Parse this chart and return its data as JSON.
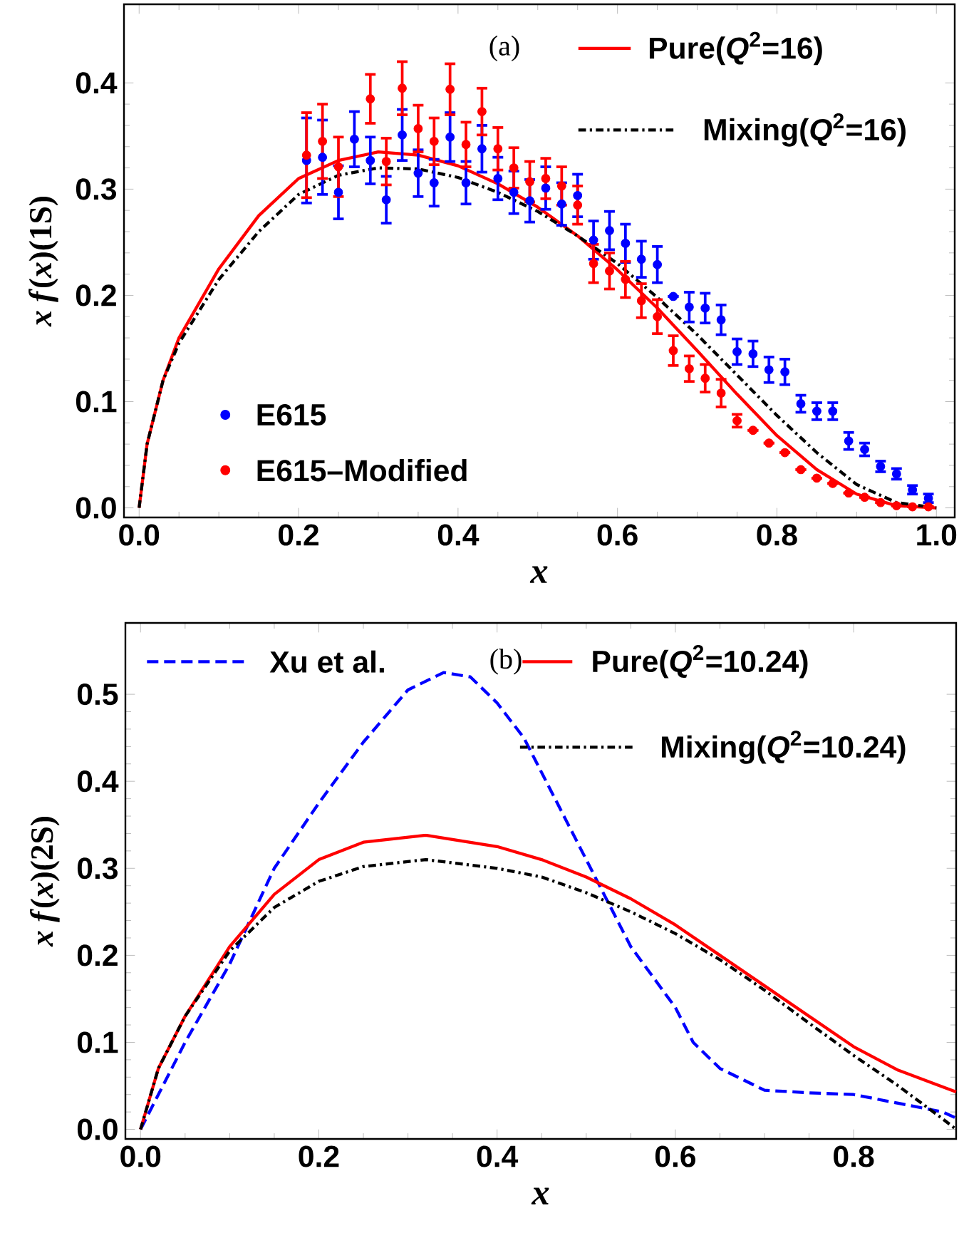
{
  "chart_data": [
    {
      "type": "line",
      "xlabel": "x",
      "ylabel": "*x* *f*(*x*)(1S)",
      "annotations": [
        "(a)"
      ],
      "xlim": [
        -0.019,
        1.023
      ],
      "ylim": [
        -0.009,
        0.474
      ],
      "xticks": [
        {
          "value": 0,
          "label": "0.0"
        },
        {
          "value": 0.2,
          "label": "0.2"
        },
        {
          "value": 0.4,
          "label": "0.4"
        },
        {
          "value": 0.6,
          "label": "0.6"
        },
        {
          "value": 0.8,
          "label": "0.8"
        },
        {
          "value": 1,
          "label": "1.0"
        }
      ],
      "yticks": [
        {
          "value": 0,
          "label": "0.0"
        },
        {
          "value": 0.1,
          "label": "0.1"
        },
        {
          "value": 0.2,
          "label": "0.2"
        },
        {
          "value": 0.3,
          "label": "0.3"
        },
        {
          "value": 0.4,
          "label": "0.4"
        }
      ],
      "legend": "top right",
      "series": [
        {
          "name": "Pure(*Q*$^{2}$=16)",
          "type": "line",
          "color": "#ff0000",
          "line_style": "solid",
          "x": [
            0,
            0.01,
            0.03,
            0.05,
            0.1,
            0.15,
            0.2,
            0.25,
            0.3,
            0.35,
            0.4,
            0.45,
            0.5,
            0.55,
            0.6,
            0.65,
            0.7,
            0.75,
            0.8,
            0.85,
            0.9,
            0.95,
            1.0
          ],
          "values": [
            0,
            0.06,
            0.12,
            0.16,
            0.225,
            0.275,
            0.31,
            0.327,
            0.335,
            0.332,
            0.322,
            0.305,
            0.283,
            0.256,
            0.224,
            0.188,
            0.148,
            0.107,
            0.068,
            0.036,
            0.013,
            0.002,
            0
          ]
        },
        {
          "name": "Mixing(*Q*$^{2}$=16)",
          "type": "line",
          "color": "#000000",
          "line_style": "dashdot",
          "x": [
            0,
            0.01,
            0.03,
            0.05,
            0.1,
            0.15,
            0.2,
            0.25,
            0.3,
            0.35,
            0.4,
            0.45,
            0.5,
            0.55,
            0.6,
            0.65,
            0.7,
            0.75,
            0.8,
            0.85,
            0.9,
            0.95,
            1.0
          ],
          "values": [
            0,
            0.06,
            0.12,
            0.155,
            0.215,
            0.26,
            0.295,
            0.313,
            0.32,
            0.319,
            0.311,
            0.297,
            0.279,
            0.256,
            0.23,
            0.198,
            0.163,
            0.125,
            0.087,
            0.052,
            0.022,
            0.005,
            0
          ]
        },
        {
          "name": "E615",
          "type": "scatter",
          "color": "#0000ff",
          "marker": "circle",
          "x": [
            0.21,
            0.23,
            0.25,
            0.27,
            0.29,
            0.31,
            0.33,
            0.35,
            0.37,
            0.39,
            0.41,
            0.43,
            0.45,
            0.47,
            0.49,
            0.51,
            0.53,
            0.55,
            0.57,
            0.59,
            0.61,
            0.63,
            0.65,
            0.67,
            0.69,
            0.71,
            0.73,
            0.75,
            0.77,
            0.79,
            0.81,
            0.83,
            0.85,
            0.87,
            0.89,
            0.91,
            0.93,
            0.95,
            0.97,
            0.99
          ],
          "values": [
            0.327,
            0.33,
            0.297,
            0.347,
            0.327,
            0.29,
            0.351,
            0.315,
            0.306,
            0.349,
            0.306,
            0.338,
            0.31,
            0.297,
            0.289,
            0.301,
            0.286,
            0.294,
            0.252,
            0.261,
            0.249,
            0.234,
            0.229,
            0.199,
            0.189,
            0.188,
            0.177,
            0.147,
            0.145,
            0.13,
            0.128,
            0.098,
            0.091,
            0.091,
            0.063,
            0.055,
            0.039,
            0.032,
            0.017,
            0.009
          ],
          "errors": [
            0.04,
            0.035,
            0.025,
            0.026,
            0.022,
            0.022,
            0.024,
            0.022,
            0.022,
            0.023,
            0.02,
            0.022,
            0.02,
            0.02,
            0.02,
            0.02,
            0.02,
            0.02,
            0.018,
            0.018,
            0.018,
            0.017,
            0.017,
            null,
            0.014,
            0.014,
            0.014,
            0.012,
            0.012,
            0.012,
            0.012,
            0.008,
            0.008,
            0.008,
            0.008,
            0.006,
            0.005,
            0.005,
            0.004,
            0.004
          ]
        },
        {
          "name": "E615–Modified",
          "type": "scatter",
          "color": "#ff0000",
          "marker": "circle",
          "x": [
            0.21,
            0.23,
            0.25,
            0.27,
            0.29,
            0.31,
            0.33,
            0.35,
            0.37,
            0.39,
            0.41,
            0.43,
            0.45,
            0.47,
            0.49,
            0.51,
            0.53,
            0.55,
            0.57,
            0.59,
            0.61,
            0.63,
            0.65,
            0.67,
            0.69,
            0.71,
            0.73,
            0.75,
            0.77,
            0.79,
            0.81,
            0.83,
            0.85,
            0.87,
            0.89,
            0.91,
            0.93,
            0.95,
            0.97,
            0.99
          ],
          "values": [
            0.332,
            0.345,
            0.321,
            null,
            0.385,
            0.326,
            0.395,
            0.357,
            0.345,
            0.394,
            0.342,
            0.373,
            0.338,
            0.32,
            0.307,
            0.31,
            0.303,
            0.285,
            0.23,
            0.223,
            0.215,
            0.195,
            0.18,
            0.148,
            0.131,
            0.122,
            0.108,
            0.082,
            0.073,
            0.061,
            0.052,
            0.036,
            0.028,
            0.023,
            0.014,
            0.01,
            0.005,
            0.002,
            0.001,
            0.001
          ],
          "errors": [
            0.04,
            0.035,
            0.028,
            null,
            0.023,
            0.022,
            0.025,
            0.022,
            0.022,
            0.024,
            0.021,
            0.022,
            0.02,
            0.019,
            0.019,
            0.019,
            0.018,
            0.018,
            0.018,
            0.017,
            0.017,
            0.016,
            0.016,
            0.014,
            0.012,
            0.013,
            0.013,
            0.006,
            null,
            null,
            null,
            null,
            null,
            null,
            null,
            null,
            null,
            null,
            null,
            null
          ]
        }
      ]
    },
    {
      "type": "line",
      "xlabel": "x",
      "ylabel": "*x* *f*(*x*)(2S)",
      "annotations": [
        "(b)"
      ],
      "xlim": [
        -0.017,
        0.915
      ],
      "ylim": [
        -0.011,
        0.582
      ],
      "xticks": [
        {
          "value": 0,
          "label": "0.0"
        },
        {
          "value": 0.2,
          "label": "0.2"
        },
        {
          "value": 0.4,
          "label": "0.4"
        },
        {
          "value": 0.6,
          "label": "0.6"
        },
        {
          "value": 0.8,
          "label": "0.8"
        }
      ],
      "yticks": [
        {
          "value": 0,
          "label": "0.0"
        },
        {
          "value": 0.1,
          "label": "0.1"
        },
        {
          "value": 0.2,
          "label": "0.2"
        },
        {
          "value": 0.3,
          "label": "0.3"
        },
        {
          "value": 0.4,
          "label": "0.4"
        },
        {
          "value": 0.5,
          "label": "0.5"
        }
      ],
      "legend": "top",
      "series": [
        {
          "name": "Xu et al.",
          "type": "line",
          "color": "#0000ff",
          "line_style": "dashed",
          "x": [
            0,
            0.02,
            0.05,
            0.1,
            0.15,
            0.2,
            0.25,
            0.3,
            0.34,
            0.37,
            0.4,
            0.43,
            0.46,
            0.5,
            0.52,
            0.55,
            0.6,
            0.62,
            0.65,
            0.7,
            0.75,
            0.8,
            0.85,
            0.9,
            0.915
          ],
          "values": [
            0,
            0.04,
            0.1,
            0.19,
            0.3,
            0.375,
            0.445,
            0.505,
            0.525,
            0.52,
            0.49,
            0.45,
            0.39,
            0.31,
            0.27,
            0.21,
            0.14,
            0.1,
            0.07,
            0.045,
            0.042,
            0.04,
            0.03,
            0.02,
            0.013
          ]
        },
        {
          "name": "Pure(*Q*$^{2}$=10.24)",
          "type": "line",
          "color": "#ff0000",
          "line_style": "solid",
          "x": [
            0,
            0.02,
            0.05,
            0.1,
            0.15,
            0.2,
            0.25,
            0.32,
            0.4,
            0.45,
            0.5,
            0.55,
            0.6,
            0.65,
            0.7,
            0.75,
            0.8,
            0.85,
            0.915
          ],
          "values": [
            0,
            0.07,
            0.13,
            0.21,
            0.27,
            0.31,
            0.33,
            0.338,
            0.325,
            0.31,
            0.29,
            0.265,
            0.235,
            0.2,
            0.165,
            0.13,
            0.095,
            0.068,
            0.043
          ]
        },
        {
          "name": "Mixing(*Q*$^{2}$=10.24)",
          "type": "line",
          "color": "#000000",
          "line_style": "dashdot",
          "x": [
            0,
            0.02,
            0.05,
            0.1,
            0.15,
            0.2,
            0.25,
            0.32,
            0.4,
            0.45,
            0.5,
            0.55,
            0.6,
            0.65,
            0.7,
            0.75,
            0.8,
            0.85,
            0.9,
            0.915
          ],
          "values": [
            0,
            0.07,
            0.13,
            0.205,
            0.255,
            0.285,
            0.302,
            0.31,
            0.3,
            0.29,
            0.272,
            0.25,
            0.225,
            0.195,
            0.16,
            0.122,
            0.085,
            0.05,
            0.012,
            0
          ]
        }
      ]
    }
  ]
}
